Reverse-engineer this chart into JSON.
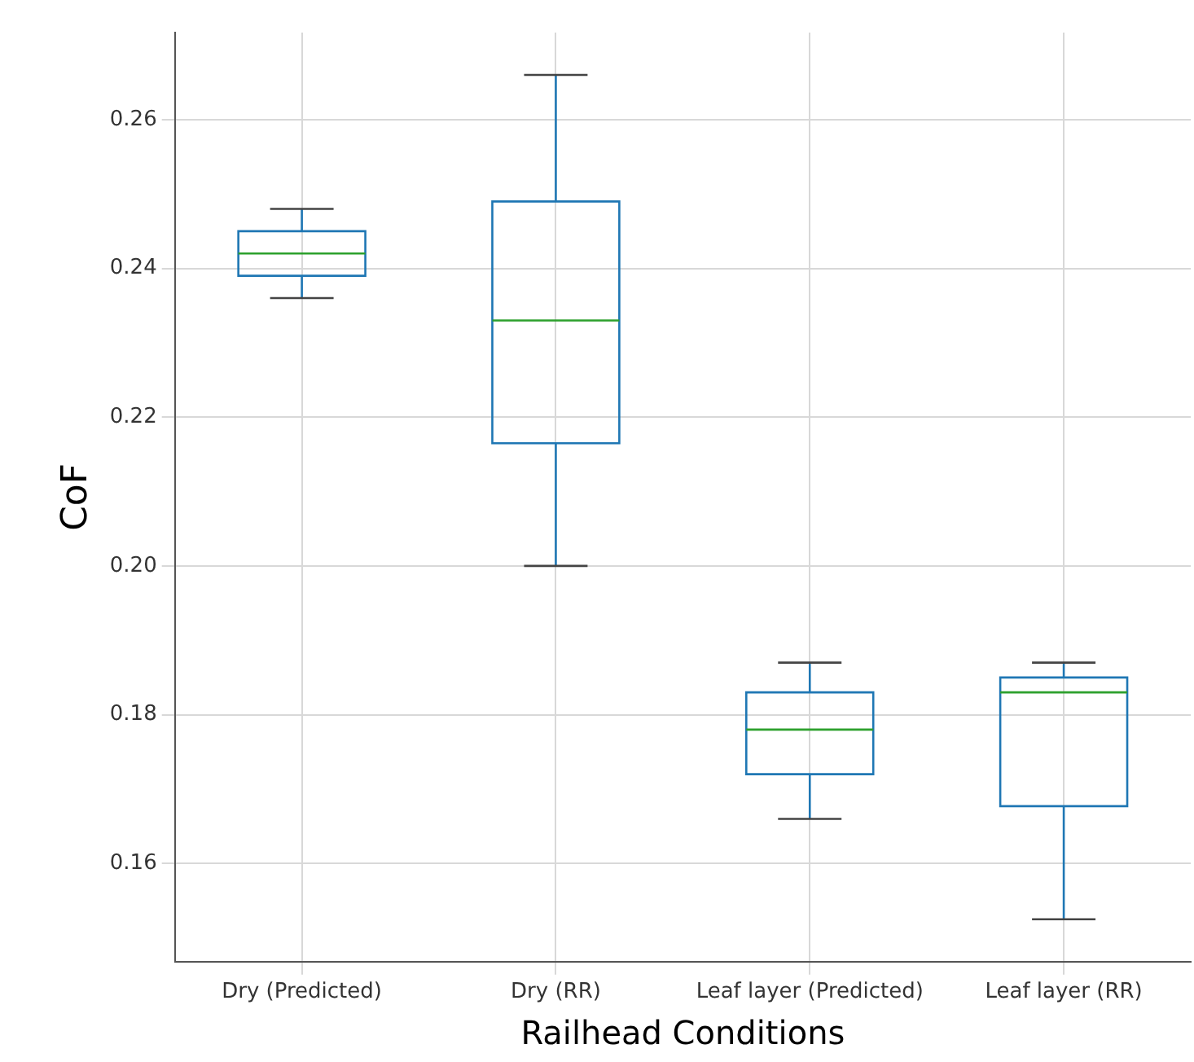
{
  "chart_data": {
    "type": "box",
    "xlabel": "Railhead Conditions",
    "ylabel": "CoF",
    "categories": [
      "Dry (Predicted)",
      "Dry (RR)",
      "Leaf layer (Predicted)",
      "Leaf layer (RR)"
    ],
    "ylim": [
      0.1468,
      0.2717
    ],
    "yticks": [
      0.16,
      0.18,
      {
        "value": 0.2,
        "label": "0.20"
      },
      0.22,
      0.24,
      0.26
    ],
    "grid": true,
    "series": [
      {
        "color": "#1f77b4",
        "boxes": [
          {
            "low": 0.236,
            "q1": 0.239,
            "median": 0.242,
            "q3": 0.245,
            "high": 0.248
          },
          {
            "low": 0.2,
            "q1": 0.2165,
            "median": 0.233,
            "q3": 0.249,
            "high": 0.266
          },
          {
            "low": 0.166,
            "q1": 0.172,
            "median": 0.178,
            "q3": 0.183,
            "high": 0.187
          },
          {
            "low": 0.1525,
            "q1": 0.1677,
            "median": 0.183,
            "q3": 0.185,
            "high": 0.187
          }
        ]
      }
    ]
  }
}
